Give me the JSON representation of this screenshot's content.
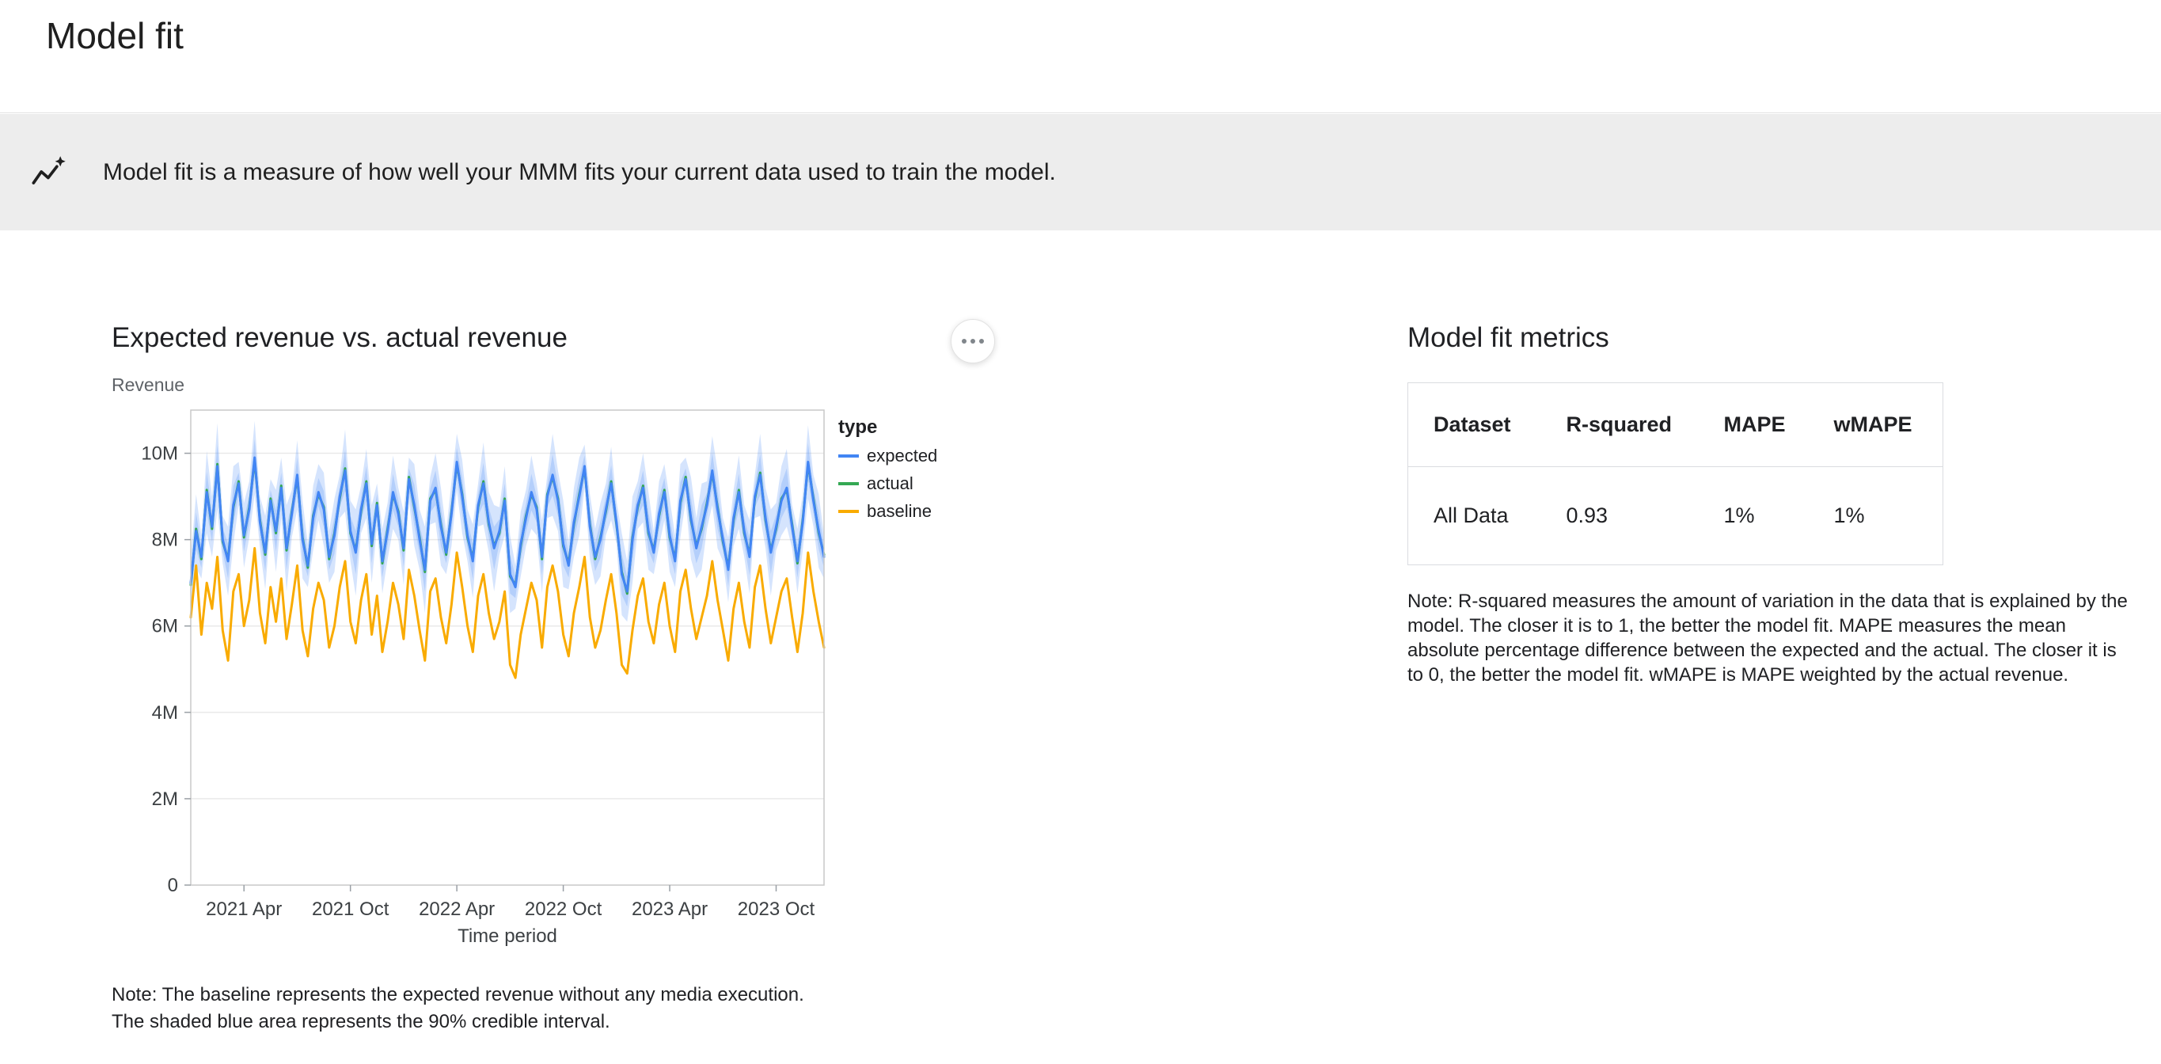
{
  "page": {
    "title": "Model fit"
  },
  "banner": {
    "icon": "model-fit-sparkline-icon",
    "text": "Model fit is a measure of how well your MMM fits your current data used to train the model."
  },
  "chart_section": {
    "title": "Expected revenue vs. actual revenue",
    "y_axis_caption": "Revenue",
    "menu_icon": "three-dots-menu",
    "note_lines": [
      "Note: The baseline represents the expected revenue without any media execution.",
      "The shaded blue area represents the 90% credible interval."
    ]
  },
  "chart_data": {
    "type": "line",
    "title": "Expected revenue vs. actual revenue",
    "xlabel": "Time period",
    "ylabel": "Revenue",
    "x_tick_labels": [
      "2021 Apr",
      "2021 Oct",
      "2022 Apr",
      "2022 Oct",
      "2023 Apr",
      "2023 Oct"
    ],
    "x_tick_positions_index": [
      10,
      30,
      50,
      70,
      90,
      110
    ],
    "y_tick_labels": [
      "0",
      "2M",
      "4M",
      "6M",
      "8M",
      "10M"
    ],
    "y_ticks_millions": [
      0,
      2,
      4,
      6,
      8,
      10
    ],
    "ylim_millions": [
      0,
      11
    ],
    "grid": "horizontal",
    "legend": {
      "title": "type",
      "position": "right-top",
      "entries": [
        {
          "label": "expected",
          "color": "#4285f4"
        },
        {
          "label": "actual",
          "color": "#34a853"
        },
        {
          "label": "baseline",
          "color": "#f9ab00"
        }
      ]
    },
    "band": {
      "label": "90% credible interval",
      "color": "#4285f4",
      "opacity": 0.22,
      "halfwidth_pattern_millions": [
        0.6,
        0.85,
        0.5,
        0.95,
        0.7,
        1.0,
        0.55,
        0.8,
        0.9,
        0.5,
        0.75,
        0.65,
        0.85
      ]
    },
    "series": [
      {
        "name": "expected",
        "color": "#4285f4",
        "values_millions": [
          7.0,
          8.2,
          7.6,
          9.1,
          8.3,
          9.7,
          8.0,
          7.5,
          8.8,
          9.3,
          8.1,
          8.7,
          9.9,
          8.4,
          7.7,
          8.9,
          8.2,
          9.2,
          7.8,
          8.6,
          9.5,
          8.0,
          7.4,
          8.5,
          9.1,
          8.7,
          7.6,
          8.1,
          9.0,
          9.6,
          8.2,
          7.7,
          8.7,
          9.3,
          7.9,
          8.8,
          7.5,
          8.2,
          9.1,
          8.6,
          7.8,
          9.4,
          8.8,
          8.0,
          7.3,
          8.9,
          9.2,
          8.3,
          7.7,
          8.6,
          9.8,
          9.0,
          8.1,
          7.5,
          8.8,
          9.3,
          8.4,
          7.8,
          8.2,
          8.9,
          7.2,
          6.9,
          7.9,
          8.5,
          9.1,
          8.7,
          7.6,
          9.0,
          9.5,
          8.9,
          7.9,
          7.4,
          8.4,
          9.0,
          9.7,
          8.3,
          7.6,
          8.0,
          8.7,
          9.3,
          8.4,
          7.2,
          6.8,
          8.0,
          8.8,
          9.2,
          8.2,
          7.7,
          8.6,
          9.1,
          8.1,
          7.5,
          8.9,
          9.4,
          8.5,
          7.8,
          8.3,
          8.8,
          9.6,
          8.7,
          8.0,
          7.3,
          8.5,
          9.1,
          8.2,
          7.6,
          9.0,
          9.5,
          8.5,
          7.7,
          8.3,
          8.9,
          9.2,
          8.3,
          7.5,
          8.4,
          9.8,
          8.9,
          8.2,
          7.6
        ]
      },
      {
        "name": "actual",
        "color": "#34a853",
        "values_millions": [
          6.95,
          8.25,
          7.55,
          9.15,
          8.25,
          9.75,
          7.95,
          7.55,
          8.75,
          9.35,
          8.05,
          8.75,
          9.85,
          8.45,
          7.65,
          8.95,
          8.15,
          9.25,
          7.75,
          8.65,
          9.45,
          8.05,
          7.35,
          8.55,
          9.05,
          8.75,
          7.55,
          8.15,
          8.95,
          9.65,
          8.15,
          7.75,
          8.65,
          9.35,
          7.85,
          8.85,
          7.45,
          8.25,
          9.05,
          8.65,
          7.75,
          9.45,
          8.75,
          8.05,
          7.25,
          8.95,
          9.15,
          8.35,
          7.65,
          8.65,
          9.75,
          9.05,
          8.05,
          7.55,
          8.75,
          9.35,
          8.35,
          7.85,
          8.15,
          8.95,
          7.15,
          6.95,
          7.85,
          8.55,
          9.05,
          8.75,
          7.55,
          9.05,
          9.45,
          8.95,
          7.85,
          7.45,
          8.35,
          9.05,
          9.65,
          8.35,
          7.55,
          8.05,
          8.65,
          9.35,
          8.35,
          7.25,
          6.75,
          8.05,
          8.75,
          9.25,
          8.15,
          7.75,
          8.55,
          9.15,
          8.05,
          7.55,
          8.85,
          9.45,
          8.45,
          7.85,
          8.25,
          8.85,
          9.55,
          8.75,
          7.95,
          7.35,
          8.45,
          9.15,
          8.15,
          7.65,
          8.95,
          9.55,
          8.45,
          7.75,
          8.25,
          8.95,
          9.15,
          8.35,
          7.45,
          8.45,
          9.75,
          8.95,
          8.15,
          7.65
        ]
      },
      {
        "name": "baseline",
        "color": "#f9ab00",
        "values_millions": [
          6.2,
          7.4,
          5.8,
          7.0,
          6.4,
          7.6,
          5.9,
          5.2,
          6.8,
          7.2,
          6.0,
          6.6,
          7.8,
          6.3,
          5.6,
          6.9,
          6.1,
          7.1,
          5.7,
          6.5,
          7.4,
          5.9,
          5.3,
          6.4,
          7.0,
          6.6,
          5.5,
          6.0,
          6.9,
          7.5,
          6.1,
          5.6,
          6.6,
          7.2,
          5.8,
          6.7,
          5.4,
          6.1,
          7.0,
          6.5,
          5.7,
          7.3,
          6.7,
          5.9,
          5.2,
          6.8,
          7.1,
          6.2,
          5.6,
          6.5,
          7.7,
          6.9,
          6.0,
          5.4,
          6.7,
          7.2,
          6.3,
          5.7,
          6.1,
          6.8,
          5.1,
          4.8,
          5.8,
          6.4,
          7.0,
          6.6,
          5.5,
          6.9,
          7.4,
          6.8,
          5.8,
          5.3,
          6.3,
          6.9,
          7.6,
          6.2,
          5.5,
          5.9,
          6.6,
          7.2,
          6.3,
          5.1,
          4.9,
          5.9,
          6.7,
          7.1,
          6.1,
          5.6,
          6.5,
          7.0,
          6.0,
          5.4,
          6.8,
          7.3,
          6.4,
          5.7,
          6.2,
          6.7,
          7.5,
          6.6,
          5.9,
          5.2,
          6.4,
          7.0,
          6.1,
          5.5,
          6.9,
          7.4,
          6.4,
          5.6,
          6.2,
          6.8,
          7.1,
          6.2,
          5.4,
          6.3,
          7.7,
          6.8,
          6.1,
          5.5
        ]
      }
    ]
  },
  "metrics_section": {
    "title": "Model fit metrics",
    "table": {
      "headers": [
        "Dataset",
        "R-squared",
        "MAPE",
        "wMAPE"
      ],
      "rows": [
        [
          "All Data",
          "0.93",
          "1%",
          "1%"
        ]
      ]
    },
    "note": "Note: R-squared measures the amount of variation in the data that is explained by the model. The closer it is to 1, the better the model fit. MAPE measures the mean absolute percentage difference between the expected and the actual. The closer it is to 0, the better the model fit. wMAPE is MAPE weighted by the actual revenue."
  },
  "colors": {
    "expected": "#4285f4",
    "actual": "#34a853",
    "baseline": "#f9ab00",
    "band": "#4285f4",
    "banner_bg": "#ededed",
    "table_border": "#dadce0"
  }
}
